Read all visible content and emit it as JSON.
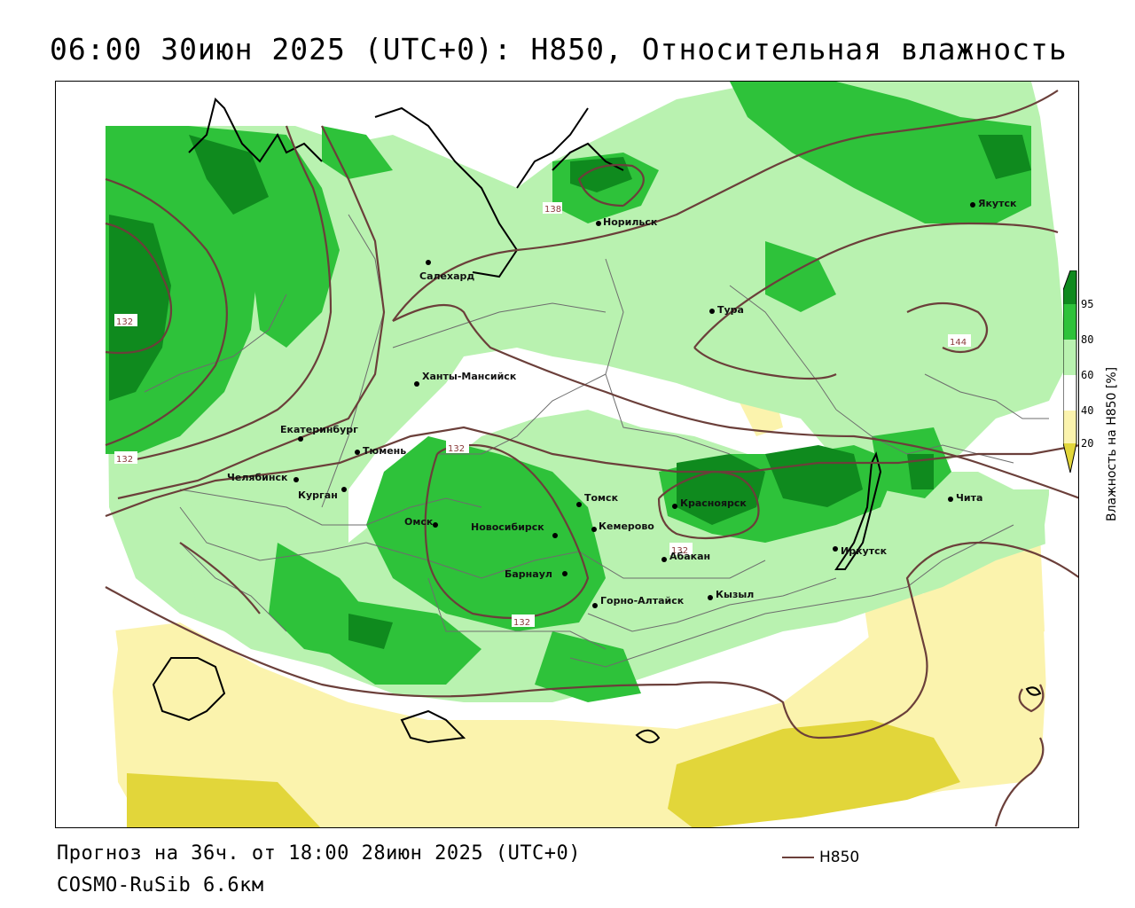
{
  "title": "06:00 30июн 2025 (UTC+0): H850, Относительная влажность",
  "footer": {
    "forecast": "Прогноз на 36ч. от 18:00 28июн 2025 (UTC+0)",
    "model": "COSMO-RuSib 6.6км",
    "legend_line_label": "H850"
  },
  "colorbar": {
    "title": "Влажность на H850 [%]",
    "ticks": [
      "95",
      "80",
      "60",
      "40",
      "20"
    ],
    "colors": {
      "dark_green": "#0f8a1e",
      "green": "#2ec23a",
      "light_green": "#b9f2b0",
      "white": "#ffffff",
      "light_yellow": "#fbf3ad",
      "yellow": "#e2d63a"
    }
  },
  "cities": [
    {
      "name": "Якутск"
    },
    {
      "name": "Норильск"
    },
    {
      "name": "Салехард"
    },
    {
      "name": "Тура"
    },
    {
      "name": "Ханты-Мансийск"
    },
    {
      "name": "Екатеринбург"
    },
    {
      "name": "Тюмень"
    },
    {
      "name": "Челябинск"
    },
    {
      "name": "Курган"
    },
    {
      "name": "Омск"
    },
    {
      "name": "Новосибирск"
    },
    {
      "name": "Томск"
    },
    {
      "name": "Кемерово"
    },
    {
      "name": "Красноярск"
    },
    {
      "name": "Абакан"
    },
    {
      "name": "Иркутск"
    },
    {
      "name": "Чита"
    },
    {
      "name": "Барнаул"
    },
    {
      "name": "Горно-Алтайск"
    },
    {
      "name": "Кызыл"
    }
  ],
  "isolines": [
    "138",
    "132",
    "132",
    "144",
    "132",
    "132",
    "132"
  ]
}
